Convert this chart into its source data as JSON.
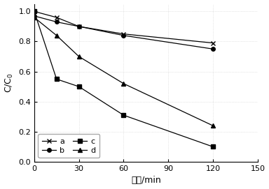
{
  "series_order": [
    "a",
    "b",
    "c",
    "d"
  ],
  "series": {
    "a": {
      "x": [
        0,
        15,
        30,
        60,
        120
      ],
      "y": [
        1.0,
        0.96,
        0.9,
        0.85,
        0.79
      ],
      "marker": "x",
      "label": "a",
      "filled": false
    },
    "b": {
      "x": [
        0,
        15,
        30,
        60,
        120
      ],
      "y": [
        0.97,
        0.93,
        0.9,
        0.84,
        0.75
      ],
      "marker": "o",
      "label": "b",
      "filled": true
    },
    "c": {
      "x": [
        0,
        15,
        30,
        60,
        120
      ],
      "y": [
        1.0,
        0.55,
        0.5,
        0.31,
        0.1
      ],
      "marker": "s",
      "label": "c",
      "filled": true
    },
    "d": {
      "x": [
        0,
        15,
        30,
        60,
        120
      ],
      "y": [
        0.96,
        0.84,
        0.7,
        0.52,
        0.24
      ],
      "marker": "^",
      "label": "d",
      "filled": true
    }
  },
  "xlabel": "时间/min",
  "ylabel": "C/C0",
  "xlim": [
    0,
    150
  ],
  "ylim": [
    0,
    1.05
  ],
  "xticks": [
    0,
    30,
    60,
    90,
    120,
    150
  ],
  "yticks": [
    0,
    0.2,
    0.4,
    0.6,
    0.8,
    1.0
  ],
  "line_color": "#000000",
  "background_color": "#ffffff",
  "markersize": 4,
  "linewidth": 0.9,
  "grid_color": "#d0d0d0",
  "grid_style": ":"
}
